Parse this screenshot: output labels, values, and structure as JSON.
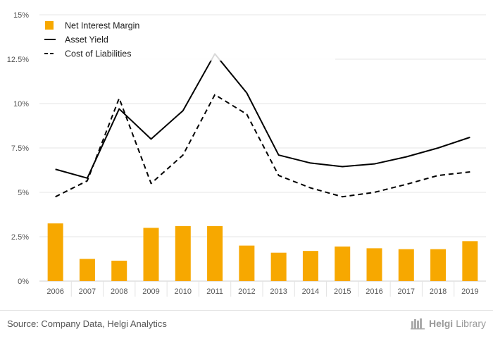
{
  "chart_data": {
    "type": "bar",
    "categories": [
      "2006",
      "2007",
      "2008",
      "2009",
      "2010",
      "2011",
      "2012",
      "2013",
      "2014",
      "2015",
      "2016",
      "2017",
      "2018",
      "2019"
    ],
    "y_ticks": [
      "0%",
      "2.5%",
      "5%",
      "7.5%",
      "10%",
      "12.5%",
      "15%"
    ],
    "ylim": [
      0,
      15
    ],
    "grid": true,
    "legend_position": "top-left",
    "series": [
      {
        "name": "Net Interest Margin",
        "type": "bar",
        "color": "#F7A800",
        "values": [
          3.25,
          1.25,
          1.15,
          3.0,
          3.1,
          3.1,
          2.0,
          1.6,
          1.7,
          1.95,
          1.85,
          1.8,
          1.8,
          2.25
        ]
      },
      {
        "name": "Asset Yield",
        "type": "line",
        "style": "solid",
        "color": "#000000",
        "values": [
          6.3,
          5.8,
          9.7,
          8.0,
          9.6,
          12.8,
          10.6,
          7.1,
          6.65,
          6.45,
          6.6,
          7.0,
          7.5,
          8.1
        ]
      },
      {
        "name": "Cost of Liabilities",
        "type": "line",
        "style": "dashed",
        "color": "#000000",
        "values": [
          4.75,
          5.65,
          10.3,
          5.5,
          7.1,
          10.5,
          9.4,
          5.95,
          5.25,
          4.75,
          5.0,
          5.45,
          5.95,
          6.15
        ]
      }
    ]
  },
  "footer": {
    "source": "Source: Company Data, Helgi Analytics",
    "brand_prefix": "Helgi",
    "brand_suffix": "Library",
    "brand_icon": "bookshelf-icon"
  }
}
